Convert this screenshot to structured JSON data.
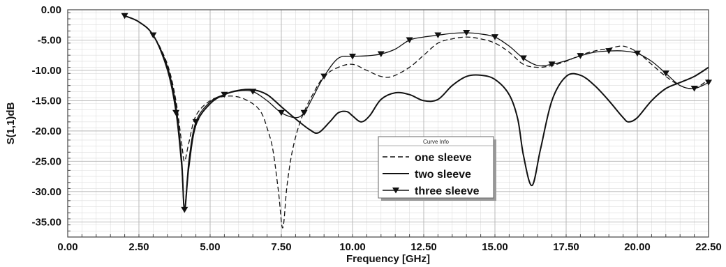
{
  "chart_data": {
    "type": "line",
    "xlabel": "Frequency [GHz]",
    "ylabel": "S(1,1)dB",
    "xlim": [
      0,
      22.5
    ],
    "ylim": [
      -37.5,
      0
    ],
    "x_ticks": [
      "0.00",
      "2.50",
      "5.00",
      "7.50",
      "10.00",
      "12.50",
      "15.00",
      "17.50",
      "20.00",
      "22.50"
    ],
    "x_tick_values": [
      0,
      2.5,
      5,
      7.5,
      10,
      12.5,
      15,
      17.5,
      20,
      22.5
    ],
    "y_ticks": [
      "0.00",
      "-5.00",
      "-10.00",
      "-15.00",
      "-20.00",
      "-25.00",
      "-30.00",
      "-35.00"
    ],
    "y_tick_values": [
      0,
      -5,
      -10,
      -15,
      -20,
      -25,
      -30,
      -35
    ],
    "grid": true,
    "legend": {
      "title": "Curve Info",
      "placement": "center-right"
    },
    "series": [
      {
        "name": "one sleeve",
        "style": "dashed",
        "marker": "none",
        "x": [
          2.0,
          2.5,
          3.0,
          3.5,
          3.8,
          4.0,
          4.1,
          4.25,
          4.5,
          5.0,
          5.5,
          6.0,
          6.5,
          6.8,
          7.0,
          7.2,
          7.4,
          7.55,
          7.7,
          7.9,
          8.2,
          8.6,
          9.0,
          9.5,
          10.0,
          10.5,
          11.0,
          11.4,
          12.0,
          12.5,
          13.0,
          13.5,
          14.0,
          14.5,
          15.0,
          15.5,
          16.0,
          16.5,
          17.0,
          17.5,
          18.0,
          18.5,
          19.0,
          19.5,
          20.0,
          20.5,
          21.0,
          21.5,
          22.0,
          22.5
        ],
        "y": [
          -1.0,
          -2.0,
          -4.2,
          -9.0,
          -15.0,
          -22.0,
          -25.0,
          -22.0,
          -17.5,
          -15.0,
          -14.3,
          -14.4,
          -15.5,
          -17.0,
          -19.5,
          -23.0,
          -30.0,
          -36.0,
          -29.0,
          -23.0,
          -18.0,
          -14.0,
          -11.0,
          -9.5,
          -9.0,
          -10.0,
          -11.0,
          -11.0,
          -9.5,
          -7.5,
          -5.5,
          -4.8,
          -4.5,
          -4.8,
          -5.5,
          -7.0,
          -9.0,
          -9.5,
          -9.2,
          -8.5,
          -7.5,
          -6.8,
          -6.4,
          -6.0,
          -7.0,
          -9.0,
          -11.0,
          -12.5,
          -13.0,
          -11.5
        ]
      },
      {
        "name": "two sleeve",
        "style": "solid",
        "marker": "none",
        "x": [
          2.0,
          2.5,
          3.0,
          3.5,
          3.8,
          4.0,
          4.1,
          4.25,
          4.5,
          5.0,
          5.5,
          6.0,
          6.5,
          7.0,
          7.5,
          8.0,
          8.5,
          8.8,
          9.2,
          9.5,
          9.8,
          10.0,
          10.3,
          10.6,
          11.0,
          11.5,
          12.0,
          12.5,
          13.0,
          13.5,
          14.0,
          14.5,
          15.0,
          15.5,
          15.8,
          16.0,
          16.3,
          16.6,
          17.0,
          17.5,
          18.0,
          18.5,
          19.0,
          19.5,
          19.7,
          20.0,
          20.5,
          21.0,
          21.5,
          22.0,
          22.5
        ],
        "y": [
          -1.0,
          -2.0,
          -4.2,
          -9.5,
          -16.0,
          -25.0,
          -33.0,
          -26.0,
          -19.0,
          -15.5,
          -14.0,
          -13.3,
          -13.2,
          -14.0,
          -16.0,
          -18.0,
          -19.8,
          -20.3,
          -18.5,
          -17.0,
          -16.8,
          -17.5,
          -18.5,
          -17.5,
          -14.8,
          -13.7,
          -14.0,
          -15.0,
          -14.8,
          -12.5,
          -11.0,
          -10.8,
          -11.5,
          -14.0,
          -18.0,
          -24.0,
          -29.0,
          -23.0,
          -15.0,
          -11.0,
          -10.8,
          -12.5,
          -15.0,
          -17.8,
          -18.5,
          -17.8,
          -15.0,
          -13.0,
          -12.0,
          -11.0,
          -9.5
        ]
      },
      {
        "name": "three sleeve",
        "style": "solid",
        "marker": "triangle-down",
        "x": [
          2.0,
          2.5,
          3.0,
          3.5,
          3.8,
          4.0,
          4.1,
          4.25,
          4.5,
          5.0,
          5.5,
          6.0,
          6.5,
          7.0,
          7.5,
          8.0,
          8.3,
          8.6,
          9.0,
          9.5,
          10.0,
          10.5,
          11.0,
          11.5,
          12.0,
          12.5,
          13.0,
          13.5,
          14.0,
          14.5,
          15.0,
          15.5,
          16.0,
          16.5,
          17.0,
          17.5,
          18.0,
          18.5,
          19.0,
          19.5,
          20.0,
          20.5,
          21.0,
          21.5,
          22.0,
          22.5
        ],
        "y": [
          -1.0,
          -2.0,
          -4.2,
          -10.0,
          -17.0,
          -26.0,
          -33.0,
          -25.0,
          -18.5,
          -15.2,
          -14.0,
          -13.4,
          -13.5,
          -15.0,
          -17.0,
          -17.8,
          -17.0,
          -14.5,
          -11.0,
          -8.0,
          -7.7,
          -7.6,
          -7.3,
          -6.5,
          -5.0,
          -4.5,
          -4.2,
          -3.9,
          -3.8,
          -4.0,
          -4.5,
          -6.0,
          -8.0,
          -9.2,
          -9.0,
          -8.4,
          -7.6,
          -7.0,
          -6.8,
          -6.8,
          -7.2,
          -8.5,
          -10.5,
          -12.5,
          -13.0,
          -12.0
        ]
      }
    ]
  }
}
